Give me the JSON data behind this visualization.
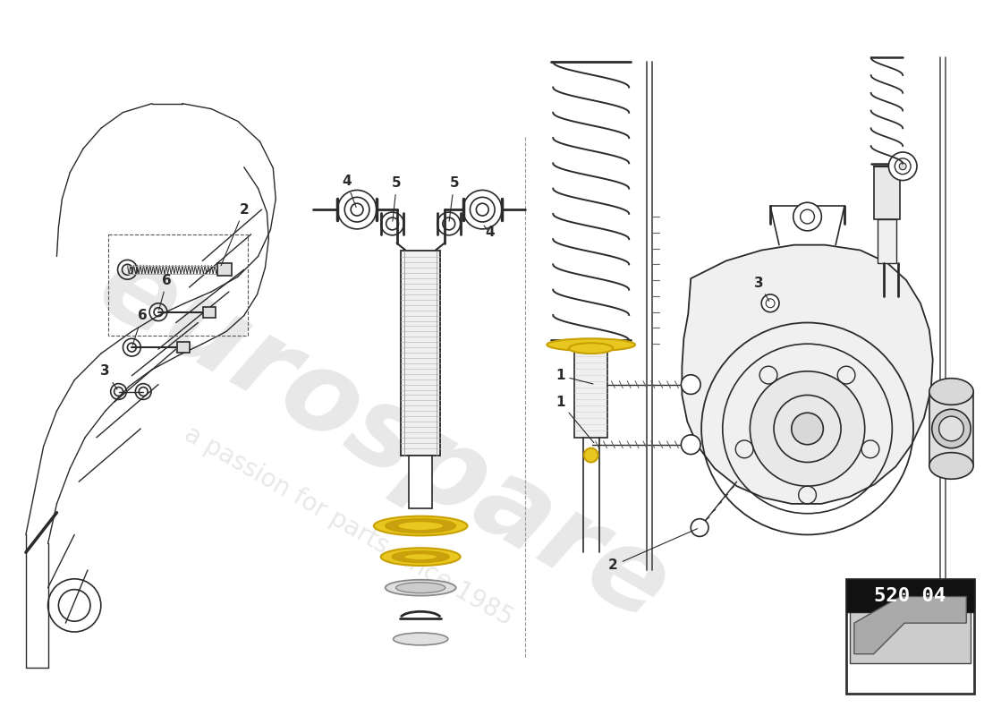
{
  "bg_color": "#ffffff",
  "line_color": "#2a2a2a",
  "watermark1": "eurospare",
  "watermark2": "a passion for parts since 1985",
  "part_number": "520 04",
  "wm_color": "#cccccc",
  "gold_color": "#c8a000",
  "gold_fill": "#e8c820",
  "grey_fill": "#e0e0e0",
  "dark_grey": "#888888",
  "light_grey": "#f0f0f0",
  "chassis_fill": "#f5f5f5"
}
